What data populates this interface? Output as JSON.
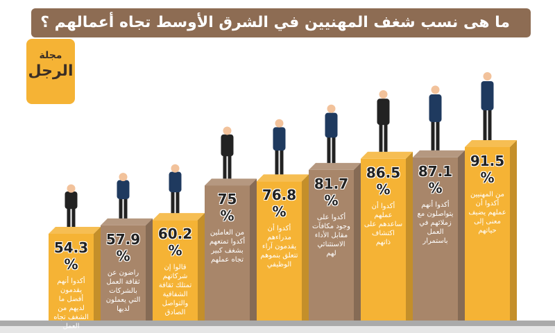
{
  "chart_data": {
    "type": "bar",
    "title": "ما هى نسب شغف المهنيين في الشرق الأوسط تجاه أعمالهم ؟",
    "unit": "%",
    "colors": [
      "#f5b335",
      "#a8866a"
    ],
    "bars": [
      {
        "value": 54.3,
        "text": "أكدوا أنهم يقدمون أفضل ما لديهم من الشغف تجاه العمل"
      },
      {
        "value": 57.9,
        "text": "راضون عن ثقافة العمل بالشركات التي يعملون لديها"
      },
      {
        "value": 60.2,
        "text": "قالوا إن شركاتهم تمتلك ثقافة الشفافية والتواصل الصادق"
      },
      {
        "value": 75,
        "text": "من العاملين أكدوا تمتعهم بشغف كبير تجاه عملهم"
      },
      {
        "value": 76.8,
        "text": "أكدوا أن مدراءهم يقدمون آراء تتعلق بنموهم الوظيفي"
      },
      {
        "value": 81.7,
        "text": "أكدوا على وجود مكافآت مقابل الأداء الاستثنائي لهم"
      },
      {
        "value": 86.5,
        "text": "أكدوا أن عملهم ساعدهم على اكتشاف ذاتهم"
      },
      {
        "value": 87.1,
        "text": "أكدوا أنهم يتواصلون مع زملائهم في العمل باستمرار"
      },
      {
        "value": 91.5,
        "text": "من المهنيين أكدوا أن عملهم يضيف معنى إلى حياتهم"
      }
    ]
  },
  "logo": {
    "line1": "مجلة",
    "line2": "الرجل"
  }
}
